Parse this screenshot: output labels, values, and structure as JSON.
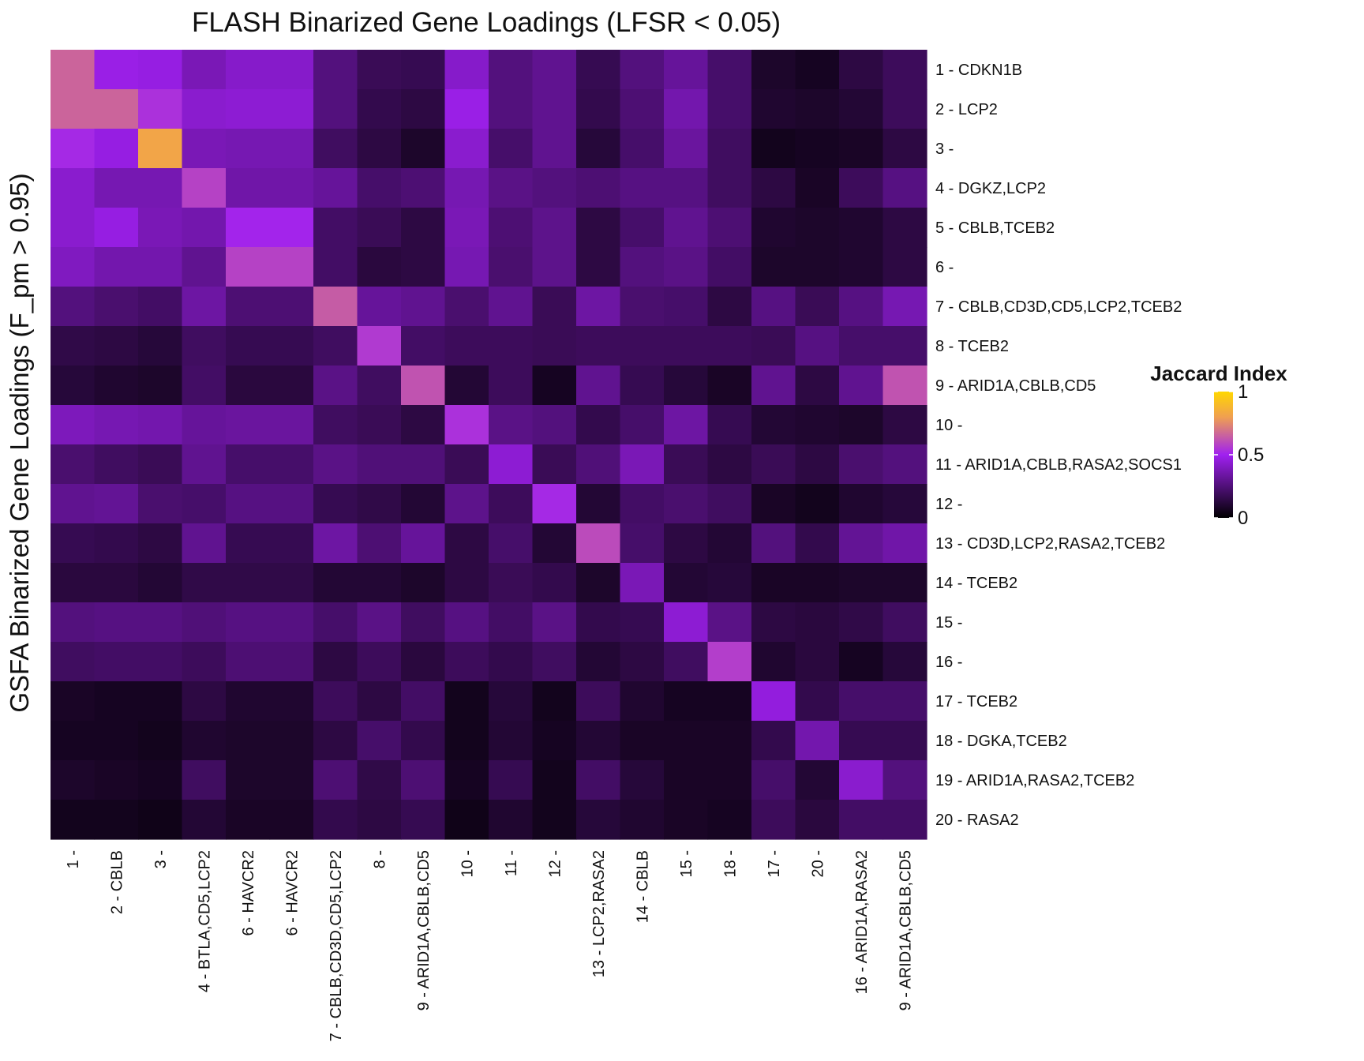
{
  "chart_data": {
    "type": "heatmap",
    "title": "FLASH Binarized Gene Loadings (LFSR < 0.05)",
    "xlabel": "",
    "ylabel": "GSFA Binarized Gene Loadings (F_pm > 0.95)",
    "x_categories": [
      "1 -",
      "2 - CBLB",
      "3 -",
      "4 - BTLA,CD5,LCP2",
      "6 - HAVCR2",
      "6 - HAVCR2",
      "7 - CBLB,CD3D,CD5,LCP2",
      "8 -",
      "9 - ARID1A,CBLB,CD5",
      "10 -",
      "11 -",
      "12 -",
      "13 - LCP2,RASA2",
      "14 - CBLB",
      "15 -",
      "18 -",
      "17 -",
      "20 -",
      "16 - ARID1A,RASA2",
      "9 - ARID1A,CBLB,CD5"
    ],
    "y_categories": [
      "1 - CDKN1B",
      "2 - LCP2",
      "3 -",
      "4 - DGKZ,LCP2",
      "5 - CBLB,TCEB2",
      "6 -",
      "7 - CBLB,CD3D,CD5,LCP2,TCEB2",
      "8 - TCEB2",
      "9 - ARID1A,CBLB,CD5",
      "10 -",
      "11 - ARID1A,CBLB,RASA2,SOCS1",
      "12 -",
      "13 - CD3D,LCP2,RASA2,TCEB2",
      "14 - TCEB2",
      "15 -",
      "16 -",
      "17 - TCEB2",
      "18 - DGKA,TCEB2",
      "19 - ARID1A,RASA2,TCEB2",
      "20 - RASA2"
    ],
    "values": [
      [
        0.66,
        0.48,
        0.47,
        0.38,
        0.42,
        0.42,
        0.26,
        0.18,
        0.17,
        0.42,
        0.26,
        0.3,
        0.17,
        0.26,
        0.32,
        0.22,
        0.09,
        0.07,
        0.14,
        0.19
      ],
      [
        0.66,
        0.66,
        0.54,
        0.43,
        0.44,
        0.44,
        0.26,
        0.16,
        0.14,
        0.48,
        0.26,
        0.3,
        0.16,
        0.24,
        0.36,
        0.22,
        0.1,
        0.09,
        0.11,
        0.19
      ],
      [
        0.52,
        0.47,
        0.82,
        0.38,
        0.37,
        0.37,
        0.2,
        0.14,
        0.09,
        0.43,
        0.22,
        0.3,
        0.12,
        0.22,
        0.33,
        0.2,
        0.06,
        0.07,
        0.08,
        0.14
      ],
      [
        0.43,
        0.37,
        0.37,
        0.58,
        0.35,
        0.35,
        0.32,
        0.22,
        0.24,
        0.37,
        0.28,
        0.26,
        0.24,
        0.27,
        0.27,
        0.2,
        0.14,
        0.08,
        0.19,
        0.27
      ],
      [
        0.43,
        0.47,
        0.38,
        0.36,
        0.51,
        0.51,
        0.21,
        0.18,
        0.14,
        0.38,
        0.24,
        0.29,
        0.14,
        0.22,
        0.3,
        0.24,
        0.1,
        0.09,
        0.1,
        0.14
      ],
      [
        0.4,
        0.36,
        0.36,
        0.3,
        0.58,
        0.58,
        0.21,
        0.13,
        0.14,
        0.37,
        0.23,
        0.29,
        0.14,
        0.26,
        0.28,
        0.21,
        0.09,
        0.09,
        0.1,
        0.14
      ],
      [
        0.26,
        0.23,
        0.21,
        0.34,
        0.24,
        0.24,
        0.64,
        0.32,
        0.3,
        0.23,
        0.3,
        0.18,
        0.34,
        0.23,
        0.22,
        0.14,
        0.27,
        0.18,
        0.27,
        0.37
      ],
      [
        0.15,
        0.14,
        0.12,
        0.2,
        0.17,
        0.17,
        0.2,
        0.56,
        0.21,
        0.19,
        0.19,
        0.18,
        0.19,
        0.19,
        0.19,
        0.19,
        0.18,
        0.27,
        0.22,
        0.22
      ],
      [
        0.12,
        0.1,
        0.09,
        0.21,
        0.13,
        0.13,
        0.28,
        0.2,
        0.62,
        0.11,
        0.19,
        0.07,
        0.3,
        0.17,
        0.12,
        0.08,
        0.3,
        0.14,
        0.3,
        0.62
      ],
      [
        0.39,
        0.37,
        0.36,
        0.32,
        0.33,
        0.33,
        0.2,
        0.18,
        0.14,
        0.54,
        0.28,
        0.26,
        0.16,
        0.22,
        0.34,
        0.17,
        0.11,
        0.1,
        0.09,
        0.14
      ],
      [
        0.23,
        0.2,
        0.18,
        0.3,
        0.22,
        0.22,
        0.28,
        0.25,
        0.25,
        0.18,
        0.44,
        0.18,
        0.25,
        0.38,
        0.18,
        0.14,
        0.18,
        0.14,
        0.23,
        0.26
      ],
      [
        0.3,
        0.31,
        0.23,
        0.22,
        0.27,
        0.27,
        0.17,
        0.15,
        0.11,
        0.29,
        0.19,
        0.52,
        0.11,
        0.21,
        0.23,
        0.2,
        0.08,
        0.06,
        0.1,
        0.12
      ],
      [
        0.17,
        0.16,
        0.14,
        0.3,
        0.17,
        0.17,
        0.34,
        0.24,
        0.32,
        0.14,
        0.22,
        0.11,
        0.6,
        0.22,
        0.14,
        0.11,
        0.26,
        0.16,
        0.31,
        0.35
      ],
      [
        0.13,
        0.13,
        0.11,
        0.15,
        0.15,
        0.15,
        0.11,
        0.11,
        0.09,
        0.14,
        0.18,
        0.16,
        0.09,
        0.38,
        0.11,
        0.12,
        0.08,
        0.08,
        0.09,
        0.09
      ],
      [
        0.26,
        0.27,
        0.27,
        0.25,
        0.27,
        0.27,
        0.22,
        0.28,
        0.2,
        0.27,
        0.21,
        0.28,
        0.16,
        0.17,
        0.44,
        0.28,
        0.14,
        0.13,
        0.15,
        0.2
      ],
      [
        0.2,
        0.21,
        0.21,
        0.19,
        0.24,
        0.24,
        0.14,
        0.19,
        0.13,
        0.19,
        0.16,
        0.2,
        0.11,
        0.14,
        0.2,
        0.57,
        0.1,
        0.13,
        0.07,
        0.12
      ],
      [
        0.08,
        0.07,
        0.07,
        0.14,
        0.1,
        0.1,
        0.19,
        0.14,
        0.21,
        0.06,
        0.12,
        0.06,
        0.19,
        0.1,
        0.07,
        0.07,
        0.46,
        0.16,
        0.22,
        0.22
      ],
      [
        0.07,
        0.07,
        0.06,
        0.1,
        0.09,
        0.09,
        0.14,
        0.22,
        0.16,
        0.06,
        0.11,
        0.07,
        0.11,
        0.08,
        0.08,
        0.08,
        0.16,
        0.36,
        0.17,
        0.17
      ],
      [
        0.09,
        0.08,
        0.07,
        0.2,
        0.09,
        0.09,
        0.24,
        0.15,
        0.24,
        0.07,
        0.17,
        0.06,
        0.21,
        0.12,
        0.08,
        0.08,
        0.22,
        0.11,
        0.43,
        0.26
      ],
      [
        0.06,
        0.06,
        0.05,
        0.11,
        0.08,
        0.08,
        0.16,
        0.14,
        0.17,
        0.05,
        0.1,
        0.06,
        0.12,
        0.1,
        0.08,
        0.07,
        0.19,
        0.13,
        0.21,
        0.21
      ]
    ],
    "zlim": [
      0,
      1
    ],
    "legend": {
      "title": "Jaccard Index",
      "breaks": [
        0,
        0.5,
        1
      ],
      "labels": [
        "0",
        "0.5",
        "1"
      ],
      "placement": "right"
    },
    "colorscale": [
      "#000000",
      "#a020f0",
      "#f0a050",
      "#ffd700"
    ],
    "grid": false
  }
}
